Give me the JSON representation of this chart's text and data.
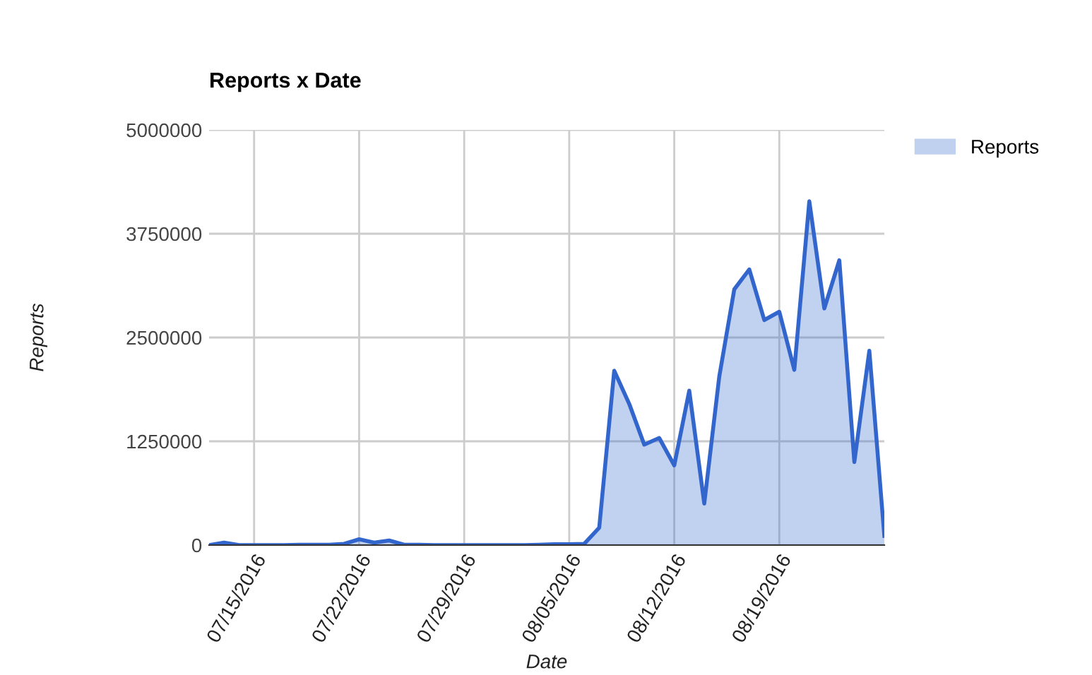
{
  "chart_data": {
    "type": "area",
    "title": "Reports x Date",
    "xlabel": "Date",
    "ylabel": "Reports",
    "x": [
      "2016-07-12",
      "2016-07-13",
      "2016-07-14",
      "2016-07-15",
      "2016-07-16",
      "2016-07-17",
      "2016-07-18",
      "2016-07-19",
      "2016-07-20",
      "2016-07-21",
      "2016-07-22",
      "2016-07-23",
      "2016-07-24",
      "2016-07-25",
      "2016-07-26",
      "2016-07-27",
      "2016-07-28",
      "2016-07-29",
      "2016-07-30",
      "2016-07-31",
      "2016-08-01",
      "2016-08-02",
      "2016-08-03",
      "2016-08-04",
      "2016-08-05",
      "2016-08-06",
      "2016-08-07",
      "2016-08-08",
      "2016-08-09",
      "2016-08-10",
      "2016-08-11",
      "2016-08-12",
      "2016-08-13",
      "2016-08-14",
      "2016-08-15",
      "2016-08-16",
      "2016-08-17",
      "2016-08-18",
      "2016-08-19",
      "2016-08-20",
      "2016-08-21",
      "2016-08-22",
      "2016-08-23",
      "2016-08-24",
      "2016-08-25",
      "2016-08-26"
    ],
    "series": [
      {
        "name": "Reports",
        "color": "#3366cc",
        "values": [
          0,
          30000,
          0,
          0,
          0,
          0,
          5000,
          5000,
          5000,
          15000,
          70000,
          30000,
          55000,
          5000,
          5000,
          0,
          0,
          0,
          0,
          0,
          0,
          0,
          5000,
          10000,
          10000,
          15000,
          210000,
          2100000,
          1700000,
          1210000,
          1290000,
          960000,
          1860000,
          500000,
          2030000,
          3080000,
          3320000,
          2710000,
          2810000,
          2110000,
          4140000,
          2850000,
          3430000,
          1000000,
          2340000,
          110000
        ]
      }
    ],
    "xlim": [
      "2016-07-12",
      "2016-08-26"
    ],
    "xticks": [
      {
        "value": "2016-07-15",
        "label": "07/15/2016"
      },
      {
        "value": "2016-07-22",
        "label": "07/22/2016"
      },
      {
        "value": "2016-07-29",
        "label": "07/29/2016"
      },
      {
        "value": "2016-08-05",
        "label": "08/05/2016"
      },
      {
        "value": "2016-08-12",
        "label": "08/12/2016"
      },
      {
        "value": "2016-08-19",
        "label": "08/19/2016"
      }
    ],
    "ylim": [
      0,
      5000000
    ],
    "yticks": [
      0,
      1250000,
      2500000,
      3750000,
      5000000
    ],
    "grid": true,
    "legend": "top right"
  }
}
